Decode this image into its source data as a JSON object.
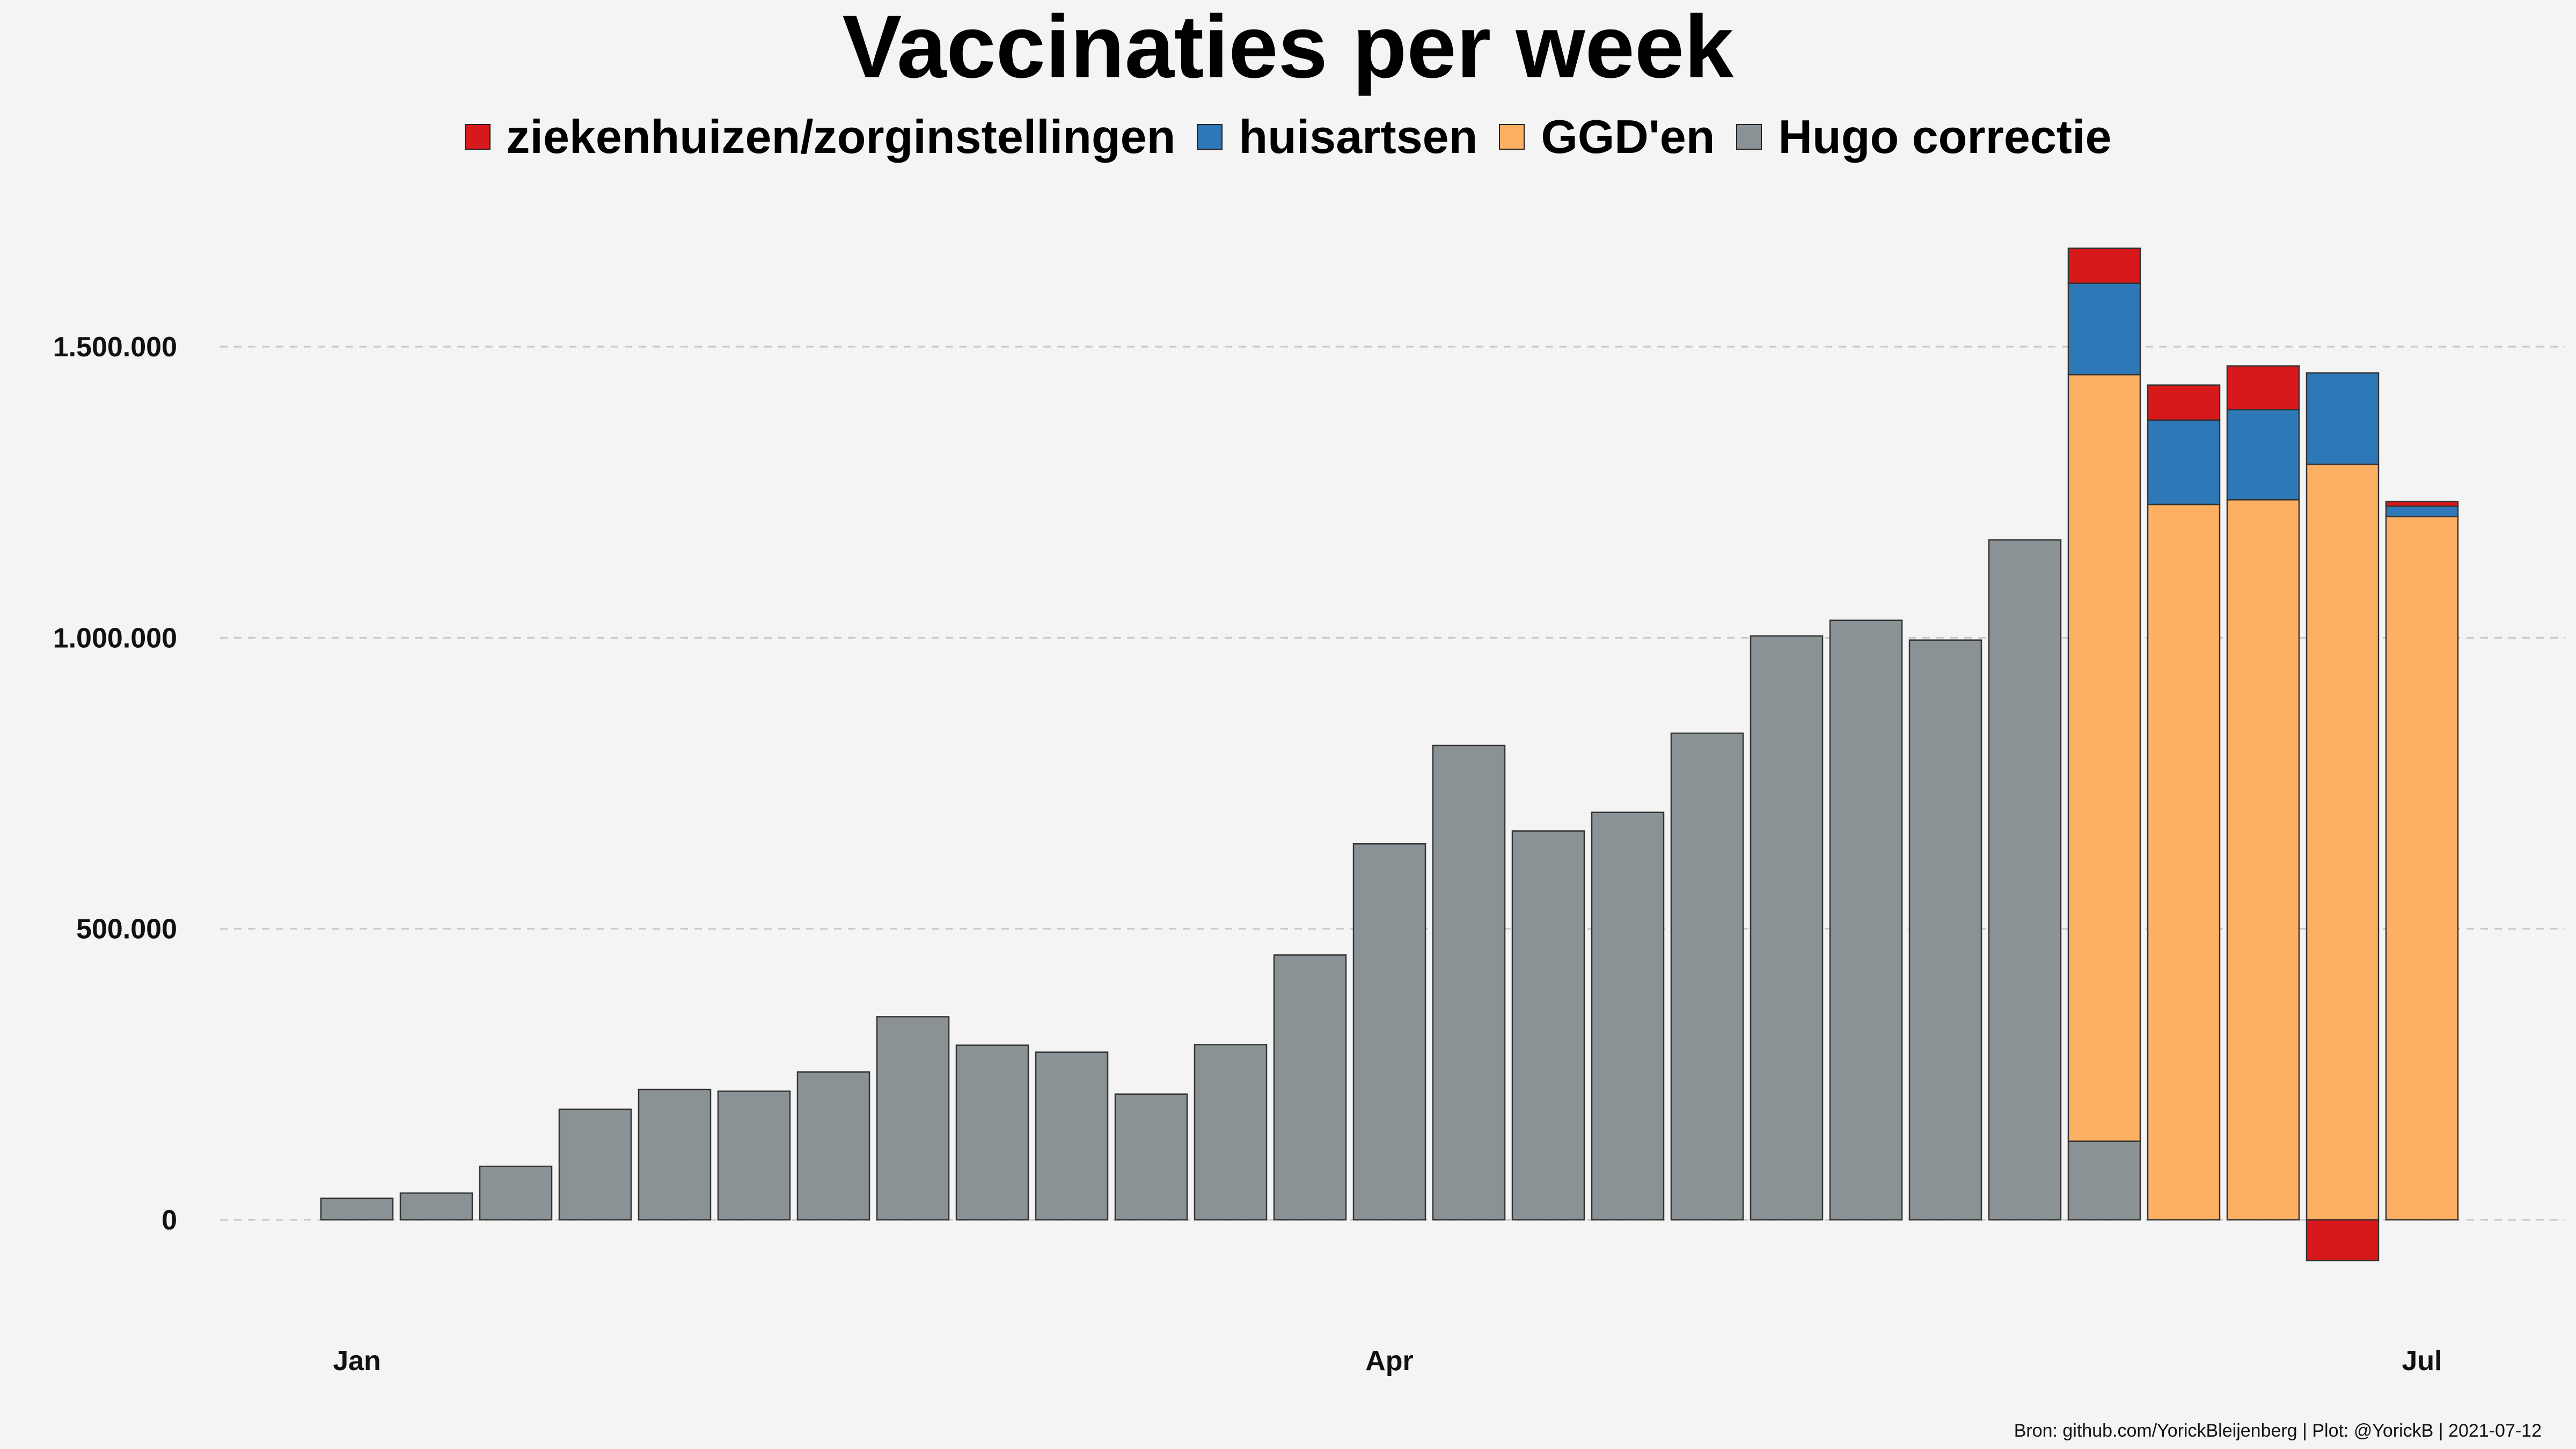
{
  "chart_data": {
    "type": "bar",
    "stacked": true,
    "title": "Vaccinaties per week",
    "xlabel": "",
    "ylabel": "",
    "ylim": [
      -120000,
      1750000
    ],
    "grid": "horizontal dashed",
    "legend_position": "top",
    "yticks": [
      {
        "value": 0,
        "label": "0"
      },
      {
        "value": 500000,
        "label": "500.000"
      },
      {
        "value": 1000000,
        "label": "1.000.000"
      },
      {
        "value": 1500000,
        "label": "1.500.000"
      }
    ],
    "xticks": [
      {
        "week": 0,
        "label": "Jan"
      },
      {
        "week": 13,
        "label": "Apr"
      },
      {
        "week": 26,
        "label": "Jul"
      }
    ],
    "x": [
      0,
      1,
      2,
      3,
      4,
      5,
      6,
      7,
      8,
      9,
      10,
      11,
      12,
      13,
      14,
      15,
      16,
      17,
      18,
      19,
      20,
      21,
      22,
      23,
      24,
      25,
      26
    ],
    "series": [
      {
        "name": "Hugo correctie",
        "color": "#8b9295",
        "values": [
          37000,
          46000,
          92000,
          190000,
          224000,
          221000,
          254000,
          349000,
          300000,
          288000,
          216000,
          301000,
          455000,
          646000,
          815000,
          668000,
          700000,
          836000,
          1003000,
          1030000,
          996000,
          1168000,
          135000,
          0,
          0,
          0,
          0
        ]
      },
      {
        "name": "GGD'en",
        "color": "#fdb062",
        "values": [
          0,
          0,
          0,
          0,
          0,
          0,
          0,
          0,
          0,
          0,
          0,
          0,
          0,
          0,
          0,
          0,
          0,
          0,
          0,
          0,
          0,
          0,
          1317000,
          1229000,
          1237000,
          1298000,
          1208000
        ]
      },
      {
        "name": "huisartsen",
        "color": "#2e78b7",
        "values": [
          0,
          0,
          0,
          0,
          0,
          0,
          0,
          0,
          0,
          0,
          0,
          0,
          0,
          0,
          0,
          0,
          0,
          0,
          0,
          0,
          0,
          0,
          157000,
          145000,
          155000,
          157000,
          18000
        ]
      },
      {
        "name": "ziekenhuizen/zorginstellingen",
        "color": "#d7191c",
        "values": [
          0,
          0,
          0,
          0,
          0,
          0,
          0,
          0,
          0,
          0,
          0,
          0,
          0,
          0,
          0,
          0,
          0,
          0,
          0,
          0,
          0,
          0,
          60000,
          60000,
          75000,
          -70000,
          8000
        ]
      }
    ]
  },
  "legend": [
    {
      "label": "ziekenhuizen/zorginstellingen",
      "color": "#d7191c"
    },
    {
      "label": "huisartsen",
      "color": "#2e78b7"
    },
    {
      "label": "GGD'en",
      "color": "#fdb062"
    },
    {
      "label": "Hugo correctie",
      "color": "#8b9295"
    }
  ],
  "caption": "Bron: github.com/YorickBleijenberg | Plot: @YorickB  |  2021-07-12"
}
